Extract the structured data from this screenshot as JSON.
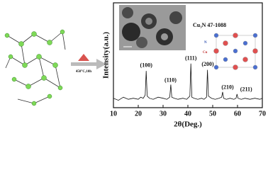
{
  "chart_data": {
    "type": "line",
    "xlabel": "2θ(Deg.)",
    "ylabel": "Intensity(a.u.)",
    "x": [
      10,
      12,
      14,
      16,
      18,
      20,
      21,
      22,
      22.8,
      23.2,
      23.6,
      24.5,
      26,
      28,
      30,
      31.5,
      32.7,
      33.1,
      33.5,
      34.5,
      36,
      38,
      39.5,
      40.8,
      41.2,
      41.6,
      42.5,
      44,
      45.5,
      46.5,
      47.5,
      47.9,
      48.3,
      49.5,
      51,
      52.5,
      53.6,
      54,
      54.4,
      55.5,
      57,
      58.5,
      59.4,
      59.8,
      60.2,
      61.5,
      63,
      65,
      67,
      69,
      70
    ],
    "values": [
      9,
      7,
      10,
      8,
      9,
      8,
      10,
      9,
      12,
      35,
      11,
      9,
      8,
      10,
      9,
      8,
      10,
      22,
      10,
      9,
      8,
      9,
      8,
      11,
      42,
      10,
      9,
      8,
      9,
      8,
      10,
      36,
      11,
      9,
      8,
      9,
      10,
      15,
      9,
      8,
      9,
      8,
      9,
      13,
      9,
      8,
      9,
      8,
      9,
      8,
      9
    ],
    "color": "#111111",
    "xlim": [
      10,
      70
    ],
    "xticks": [
      10,
      20,
      30,
      40,
      50,
      60,
      70
    ],
    "ylim": [
      0,
      100
    ],
    "annotations": [
      {
        "text": "(100)",
        "x": 23.2,
        "y": 40
      },
      {
        "text": "(110)",
        "x": 33,
        "y": 26
      },
      {
        "text": "(111)",
        "x": 41.2,
        "y": 47
      },
      {
        "text": "(200)",
        "x": 48,
        "y": 41
      },
      {
        "text": "(210)",
        "x": 56,
        "y": 19
      },
      {
        "text": "(211)",
        "x": 63.5,
        "y": 17
      }
    ],
    "inset_label": "Cu₃N  47-1088",
    "structure_labels": [
      "N",
      "Cu"
    ],
    "process_label": "450°C,10h"
  }
}
